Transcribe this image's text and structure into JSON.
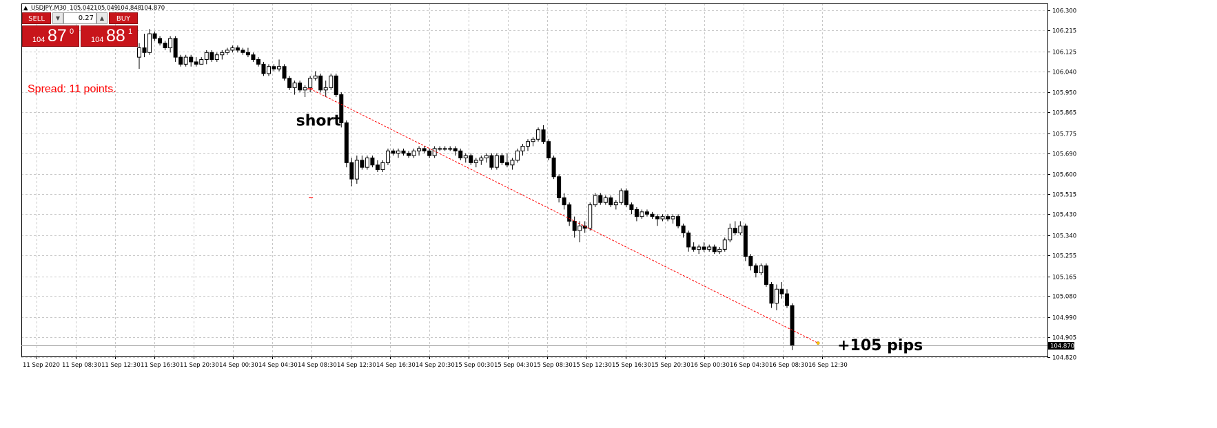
{
  "header": {
    "symbol": "USDJPY,M30",
    "open": "105.042",
    "high": "105.049",
    "low": "104.848",
    "close": "104.870"
  },
  "trade_panel": {
    "sell_label": "SELL",
    "buy_label": "BUY",
    "volume": "0.27",
    "sell_price": {
      "small": "104",
      "big": "87",
      "sup": "0"
    },
    "buy_price": {
      "small": "104",
      "big": "88",
      "sup": "1"
    }
  },
  "spread_text": "Spread: 11 points.",
  "current_price_label": "104.870",
  "colors": {
    "trade_button": "#c8151b",
    "trendline": "#ff0000",
    "spread_text": "#ff0000",
    "candle": "#000000"
  },
  "chart_data": {
    "type": "candlestick",
    "ylim": [
      104.78,
      106.335
    ],
    "y_ticks": [
      "106.300",
      "106.215",
      "106.125",
      "106.040",
      "105.950",
      "105.865",
      "105.775",
      "105.690",
      "105.600",
      "105.515",
      "105.430",
      "105.340",
      "105.255",
      "105.165",
      "105.080",
      "104.990",
      "104.905",
      "104.820"
    ],
    "x_ticks": [
      "11 Sep 2020",
      "11 Sep 08:30",
      "11 Sep 12:30",
      "11 Sep 16:30",
      "11 Sep 20:30",
      "14 Sep 00:30",
      "14 Sep 04:30",
      "14 Sep 08:30",
      "14 Sep 12:30",
      "14 Sep 16:30",
      "14 Sep 20:30",
      "15 Sep 00:30",
      "15 Sep 04:30",
      "15 Sep 08:30",
      "15 Sep 12:30",
      "15 Sep 16:30",
      "15 Sep 20:30",
      "16 Sep 00:30",
      "16 Sep 04:30",
      "16 Sep 08:30",
      "16 Sep 12:30"
    ],
    "grid": true,
    "annotations": [
      {
        "text": "short",
        "index": 34,
        "price": 105.92
      },
      {
        "text": "+105 pips",
        "index": 131,
        "price": 104.87
      }
    ],
    "trendline": {
      "start": {
        "index": 33,
        "price": 105.965
      },
      "end": {
        "index": 131,
        "price": 104.88
      }
    },
    "entry_marker_price": 105.965,
    "small_marker_price": 105.5,
    "current_price": 104.87,
    "candles": [
      [
        106.1,
        106.16,
        106.05,
        106.14
      ],
      [
        106.14,
        106.2,
        106.1,
        106.12
      ],
      [
        106.12,
        106.22,
        106.11,
        106.2
      ],
      [
        106.2,
        106.21,
        106.17,
        106.18
      ],
      [
        106.18,
        106.19,
        106.15,
        106.16
      ],
      [
        106.16,
        106.17,
        106.13,
        106.14
      ],
      [
        106.14,
        106.19,
        106.12,
        106.18
      ],
      [
        106.18,
        106.19,
        106.08,
        106.1
      ],
      [
        106.1,
        106.11,
        106.06,
        106.07
      ],
      [
        106.07,
        106.11,
        106.06,
        106.1
      ],
      [
        106.1,
        106.11,
        106.06,
        106.08
      ],
      [
        106.08,
        106.1,
        106.06,
        106.07
      ],
      [
        106.07,
        106.1,
        106.07,
        106.09
      ],
      [
        106.09,
        106.13,
        106.07,
        106.12
      ],
      [
        106.12,
        106.13,
        106.08,
        106.09
      ],
      [
        106.09,
        106.12,
        106.08,
        106.11
      ],
      [
        106.11,
        106.13,
        106.09,
        106.12
      ],
      [
        106.12,
        106.14,
        106.11,
        106.13
      ],
      [
        106.13,
        106.15,
        106.12,
        106.14
      ],
      [
        106.14,
        106.15,
        106.12,
        106.13
      ],
      [
        106.13,
        106.14,
        106.11,
        106.12
      ],
      [
        106.12,
        106.14,
        106.1,
        106.11
      ],
      [
        106.11,
        106.12,
        106.08,
        106.09
      ],
      [
        106.09,
        106.1,
        106.06,
        106.07
      ],
      [
        106.07,
        106.08,
        106.02,
        106.03
      ],
      [
        106.03,
        106.07,
        106.02,
        106.06
      ],
      [
        106.06,
        106.07,
        106.04,
        106.05
      ],
      [
        106.05,
        106.09,
        106.04,
        106.06
      ],
      [
        106.06,
        106.07,
        106.0,
        106.01
      ],
      [
        106.01,
        106.02,
        105.96,
        105.97
      ],
      [
        105.97,
        106.0,
        105.94,
        105.99
      ],
      [
        105.99,
        106.0,
        105.95,
        105.96
      ],
      [
        105.96,
        105.98,
        105.93,
        105.97
      ],
      [
        105.97,
        106.02,
        105.95,
        106.01
      ],
      [
        106.01,
        106.04,
        106.0,
        106.02
      ],
      [
        106.02,
        106.03,
        105.95,
        105.96
      ],
      [
        105.96,
        106.0,
        105.93,
        105.97
      ],
      [
        105.97,
        106.03,
        105.96,
        106.02
      ],
      [
        106.02,
        106.03,
        105.93,
        105.94
      ],
      [
        105.94,
        105.95,
        105.8,
        105.82
      ],
      [
        105.82,
        105.83,
        105.63,
        105.65
      ],
      [
        105.65,
        105.67,
        105.55,
        105.58
      ],
      [
        105.58,
        105.68,
        105.56,
        105.66
      ],
      [
        105.66,
        105.68,
        105.62,
        105.63
      ],
      [
        105.63,
        105.68,
        105.62,
        105.67
      ],
      [
        105.67,
        105.68,
        105.63,
        105.64
      ],
      [
        105.64,
        105.66,
        105.61,
        105.62
      ],
      [
        105.62,
        105.66,
        105.61,
        105.65
      ],
      [
        105.65,
        105.71,
        105.64,
        105.7
      ],
      [
        105.7,
        105.71,
        105.68,
        105.69
      ],
      [
        105.69,
        105.71,
        105.67,
        105.7
      ],
      [
        105.7,
        105.71,
        105.68,
        105.69
      ],
      [
        105.69,
        105.7,
        105.67,
        105.68
      ],
      [
        105.68,
        105.71,
        105.67,
        105.7
      ],
      [
        105.7,
        105.72,
        105.68,
        105.71
      ],
      [
        105.71,
        105.72,
        105.69,
        105.7
      ],
      [
        105.7,
        105.71,
        105.67,
        105.68
      ],
      [
        105.68,
        105.72,
        105.67,
        105.71
      ],
      [
        105.71,
        105.72,
        105.7,
        105.71
      ],
      [
        105.71,
        105.72,
        105.7,
        105.71
      ],
      [
        105.71,
        105.72,
        105.7,
        105.71
      ],
      [
        105.71,
        105.72,
        105.68,
        105.7
      ],
      [
        105.7,
        105.71,
        105.66,
        105.67
      ],
      [
        105.67,
        105.69,
        105.65,
        105.68
      ],
      [
        105.68,
        105.69,
        105.64,
        105.65
      ],
      [
        105.65,
        105.67,
        105.63,
        105.66
      ],
      [
        105.66,
        105.68,
        105.64,
        105.67
      ],
      [
        105.67,
        105.69,
        105.65,
        105.68
      ],
      [
        105.68,
        105.69,
        105.62,
        105.63
      ],
      [
        105.63,
        105.69,
        105.62,
        105.68
      ],
      [
        105.68,
        105.69,
        105.64,
        105.65
      ],
      [
        105.65,
        105.69,
        105.63,
        105.64
      ],
      [
        105.64,
        105.67,
        105.62,
        105.66
      ],
      [
        105.66,
        105.71,
        105.65,
        105.7
      ],
      [
        105.7,
        105.73,
        105.68,
        105.72
      ],
      [
        105.72,
        105.75,
        105.7,
        105.74
      ],
      [
        105.74,
        105.76,
        105.72,
        105.75
      ],
      [
        105.75,
        105.8,
        105.74,
        105.79
      ],
      [
        105.79,
        105.81,
        105.73,
        105.74
      ],
      [
        105.74,
        105.75,
        105.66,
        105.67
      ],
      [
        105.67,
        105.68,
        105.58,
        105.59
      ],
      [
        105.59,
        105.6,
        105.48,
        105.5
      ],
      [
        105.5,
        105.52,
        105.45,
        105.47
      ],
      [
        105.47,
        105.48,
        105.38,
        105.4
      ],
      [
        105.4,
        105.42,
        105.33,
        105.36
      ],
      [
        105.36,
        105.4,
        105.31,
        105.38
      ],
      [
        105.38,
        105.4,
        105.35,
        105.37
      ],
      [
        105.37,
        105.48,
        105.36,
        105.47
      ],
      [
        105.47,
        105.52,
        105.46,
        105.51
      ],
      [
        105.51,
        105.52,
        105.47,
        105.48
      ],
      [
        105.48,
        105.51,
        105.47,
        105.5
      ],
      [
        105.5,
        105.51,
        105.46,
        105.47
      ],
      [
        105.47,
        105.49,
        105.45,
        105.48
      ],
      [
        105.48,
        105.54,
        105.47,
        105.53
      ],
      [
        105.53,
        105.54,
        105.46,
        105.47
      ],
      [
        105.47,
        105.48,
        105.43,
        105.45
      ],
      [
        105.45,
        105.46,
        105.4,
        105.42
      ],
      [
        105.42,
        105.45,
        105.41,
        105.44
      ],
      [
        105.44,
        105.45,
        105.42,
        105.43
      ],
      [
        105.43,
        105.44,
        105.41,
        105.42
      ],
      [
        105.42,
        105.43,
        105.38,
        105.41
      ],
      [
        105.41,
        105.43,
        105.4,
        105.42
      ],
      [
        105.42,
        105.43,
        105.4,
        105.41
      ],
      [
        105.41,
        105.43,
        105.39,
        105.42
      ],
      [
        105.42,
        105.43,
        105.37,
        105.38
      ],
      [
        105.38,
        105.39,
        105.33,
        105.35
      ],
      [
        105.35,
        105.36,
        105.27,
        105.29
      ],
      [
        105.29,
        105.31,
        105.27,
        105.28
      ],
      [
        105.28,
        105.3,
        105.26,
        105.29
      ],
      [
        105.29,
        105.31,
        105.27,
        105.28
      ],
      [
        105.28,
        105.3,
        105.27,
        105.29
      ],
      [
        105.29,
        105.3,
        105.26,
        105.27
      ],
      [
        105.27,
        105.29,
        105.26,
        105.28
      ],
      [
        105.28,
        105.33,
        105.27,
        105.32
      ],
      [
        105.32,
        105.39,
        105.31,
        105.37
      ],
      [
        105.37,
        105.4,
        105.34,
        105.35
      ],
      [
        105.35,
        105.4,
        105.34,
        105.38
      ],
      [
        105.38,
        105.39,
        105.23,
        105.25
      ],
      [
        105.25,
        105.26,
        105.19,
        105.21
      ],
      [
        105.21,
        105.22,
        105.16,
        105.18
      ],
      [
        105.18,
        105.22,
        105.17,
        105.21
      ],
      [
        105.21,
        105.22,
        105.12,
        105.13
      ],
      [
        105.13,
        105.14,
        105.03,
        105.05
      ],
      [
        105.05,
        105.13,
        105.02,
        105.11
      ],
      [
        105.11,
        105.14,
        105.07,
        105.09
      ],
      [
        105.09,
        105.11,
        105.03,
        105.04
      ],
      [
        105.04,
        105.05,
        104.85,
        104.87
      ]
    ]
  }
}
